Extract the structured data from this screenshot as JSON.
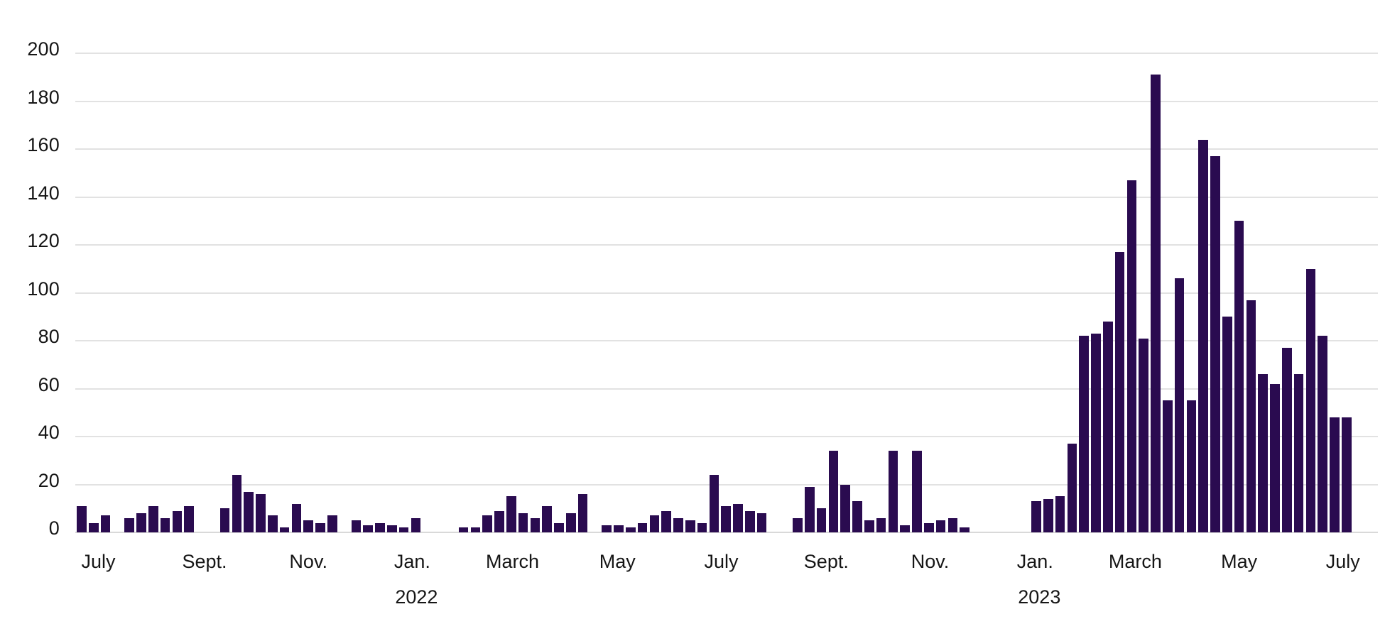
{
  "chart_data": {
    "type": "bar",
    "title": "",
    "xlabel": "",
    "ylabel": "",
    "granularity": "weekly",
    "ylim": [
      0,
      200
    ],
    "grid": true,
    "legend": "none",
    "colors": {
      "bar": "#2a0b50",
      "gridline": "#e2e2e2",
      "baseline": "#d9d9d9",
      "text": "#161616",
      "background": "#ffffff"
    },
    "y_ticks": [
      0,
      20,
      40,
      60,
      80,
      100,
      120,
      140,
      160,
      180,
      200
    ],
    "x_ticks": [
      {
        "label": "July",
        "week": 1.4
      },
      {
        "label": "Sept.",
        "week": 10.3
      },
      {
        "label": "Nov.",
        "week": 19.0
      },
      {
        "label": "Jan.",
        "week": 27.7
      },
      {
        "label": "March",
        "week": 36.1
      },
      {
        "label": "May",
        "week": 44.9
      },
      {
        "label": "July",
        "week": 53.6
      },
      {
        "label": "Sept.",
        "week": 62.4
      },
      {
        "label": "Nov.",
        "week": 71.1
      },
      {
        "label": "Jan.",
        "week": 79.9
      },
      {
        "label": "March",
        "week": 88.3
      },
      {
        "label": "May",
        "week": 97.0
      },
      {
        "label": "July",
        "week": 105.7
      }
    ],
    "year_labels": [
      {
        "label": "2022",
        "week": 27.7
      },
      {
        "label": "2023",
        "week": 79.9
      }
    ],
    "weekly_values": [
      11,
      4,
      7,
      null,
      6,
      8,
      11,
      6,
      9,
      11,
      null,
      null,
      10,
      24,
      17,
      16,
      7,
      2,
      12,
      5,
      4,
      7,
      null,
      5,
      3,
      4,
      3,
      2,
      6,
      null,
      null,
      null,
      2,
      2,
      7,
      9,
      15,
      8,
      6,
      11,
      4,
      8,
      16,
      null,
      3,
      3,
      2,
      4,
      7,
      9,
      6,
      5,
      4,
      24,
      11,
      12,
      9,
      8,
      null,
      null,
      6,
      19,
      10,
      34,
      20,
      13,
      5,
      6,
      34,
      3,
      34,
      4,
      5,
      6,
      2,
      null,
      null,
      null,
      null,
      null,
      13,
      14,
      15,
      37,
      82,
      83,
      88,
      117,
      147,
      81,
      191,
      55,
      106,
      55,
      164,
      157,
      90,
      130,
      97,
      66,
      62,
      77,
      66,
      110,
      82,
      48,
      48
    ]
  }
}
